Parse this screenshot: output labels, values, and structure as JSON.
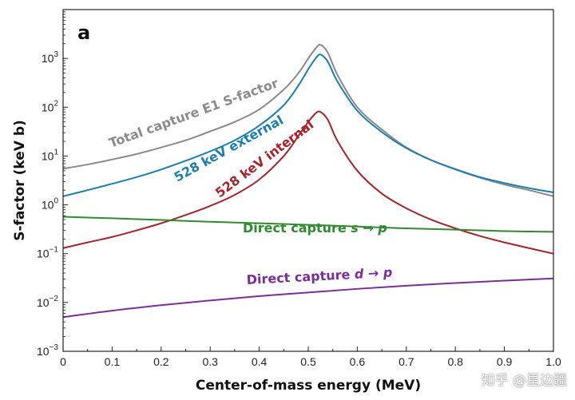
{
  "chart_data": {
    "type": "line",
    "panel_label": "a",
    "xlabel": "Center-of-mass energy (MeV)",
    "ylabel": "S-factor (keV b)",
    "xlim": [
      0,
      1.0
    ],
    "ylim": [
      0.001,
      10000
    ],
    "yscale": "log",
    "grid": false,
    "x_ticks": [
      "0",
      "0.1",
      "0.2",
      "0.3",
      "0.4",
      "0.5",
      "0.6",
      "0.7",
      "0.8",
      "0.9",
      "1.0"
    ],
    "y_ticks": [
      {
        "base": "10",
        "exp": "−3"
      },
      {
        "base": "10",
        "exp": "−2"
      },
      {
        "base": "10",
        "exp": "−1"
      },
      {
        "base": "10",
        "exp": "0"
      },
      {
        "base": "10",
        "exp": "1"
      },
      {
        "base": "10",
        "exp": "2"
      },
      {
        "base": "10",
        "exp": "3"
      }
    ],
    "series": [
      {
        "name": "Total capture E1 S-factor",
        "color": "#8a8a8a",
        "x": [
          0,
          0.05,
          0.1,
          0.15,
          0.2,
          0.25,
          0.3,
          0.35,
          0.4,
          0.45,
          0.48,
          0.5,
          0.515,
          0.525,
          0.54,
          0.56,
          0.6,
          0.65,
          0.7,
          0.75,
          0.8,
          0.85,
          0.9,
          0.95,
          1.0
        ],
        "y": [
          5.5,
          6.7,
          8.5,
          11,
          15,
          21,
          32,
          50,
          90,
          230,
          500,
          1000,
          1600,
          1900,
          1300,
          450,
          100,
          35,
          15,
          8.3,
          5.3,
          3.6,
          2.6,
          2.0,
          1.5
        ]
      },
      {
        "name": "528 keV external",
        "color": "#1a7fae",
        "x": [
          0,
          0.05,
          0.1,
          0.15,
          0.2,
          0.25,
          0.3,
          0.35,
          0.4,
          0.45,
          0.48,
          0.5,
          0.515,
          0.525,
          0.54,
          0.56,
          0.6,
          0.65,
          0.7,
          0.75,
          0.8,
          0.85,
          0.9,
          0.95,
          1.0
        ],
        "y": [
          1.5,
          2.0,
          2.7,
          3.7,
          5.3,
          8.0,
          12.5,
          21,
          42,
          110,
          280,
          600,
          1000,
          1200,
          850,
          330,
          85,
          31,
          14.5,
          8.3,
          5.4,
          3.7,
          2.8,
          2.2,
          1.8
        ]
      },
      {
        "name": "528 keV internal",
        "color": "#a8232a",
        "x": [
          0,
          0.05,
          0.1,
          0.15,
          0.2,
          0.25,
          0.3,
          0.35,
          0.4,
          0.45,
          0.48,
          0.5,
          0.515,
          0.525,
          0.54,
          0.56,
          0.6,
          0.65,
          0.7,
          0.75,
          0.8,
          0.85,
          0.9,
          0.95,
          1.0
        ],
        "y": [
          0.13,
          0.17,
          0.22,
          0.3,
          0.42,
          0.62,
          0.95,
          1.6,
          3.3,
          10,
          26,
          50,
          75,
          80,
          55,
          20,
          5.0,
          1.7,
          0.85,
          0.5,
          0.33,
          0.23,
          0.17,
          0.13,
          0.1
        ]
      },
      {
        "name": "Direct capture s → p",
        "color": "#2e8b2e",
        "x": [
          0,
          0.1,
          0.2,
          0.3,
          0.4,
          0.5,
          0.6,
          0.7,
          0.8,
          0.9,
          1.0
        ],
        "y": [
          0.57,
          0.53,
          0.49,
          0.45,
          0.42,
          0.39,
          0.36,
          0.33,
          0.31,
          0.29,
          0.28
        ]
      },
      {
        "name": "Direct capture d → p",
        "color": "#7b2d9c",
        "x": [
          0,
          0.1,
          0.2,
          0.3,
          0.4,
          0.5,
          0.6,
          0.7,
          0.8,
          0.9,
          1.0
        ],
        "y": [
          0.005,
          0.0068,
          0.0088,
          0.011,
          0.0135,
          0.016,
          0.019,
          0.022,
          0.025,
          0.028,
          0.031
        ]
      }
    ],
    "curve_labels": {
      "total": "Total capture E1 S-factor",
      "external": "528 keV external",
      "internal": "528 keV internal",
      "s_to_p_prefix": "Direct capture",
      "s_to_p_italic": "s → p",
      "d_to_p_prefix": "Direct capture",
      "d_to_p_italic": "d → p"
    }
  },
  "watermark": "知乎 @星边疆"
}
